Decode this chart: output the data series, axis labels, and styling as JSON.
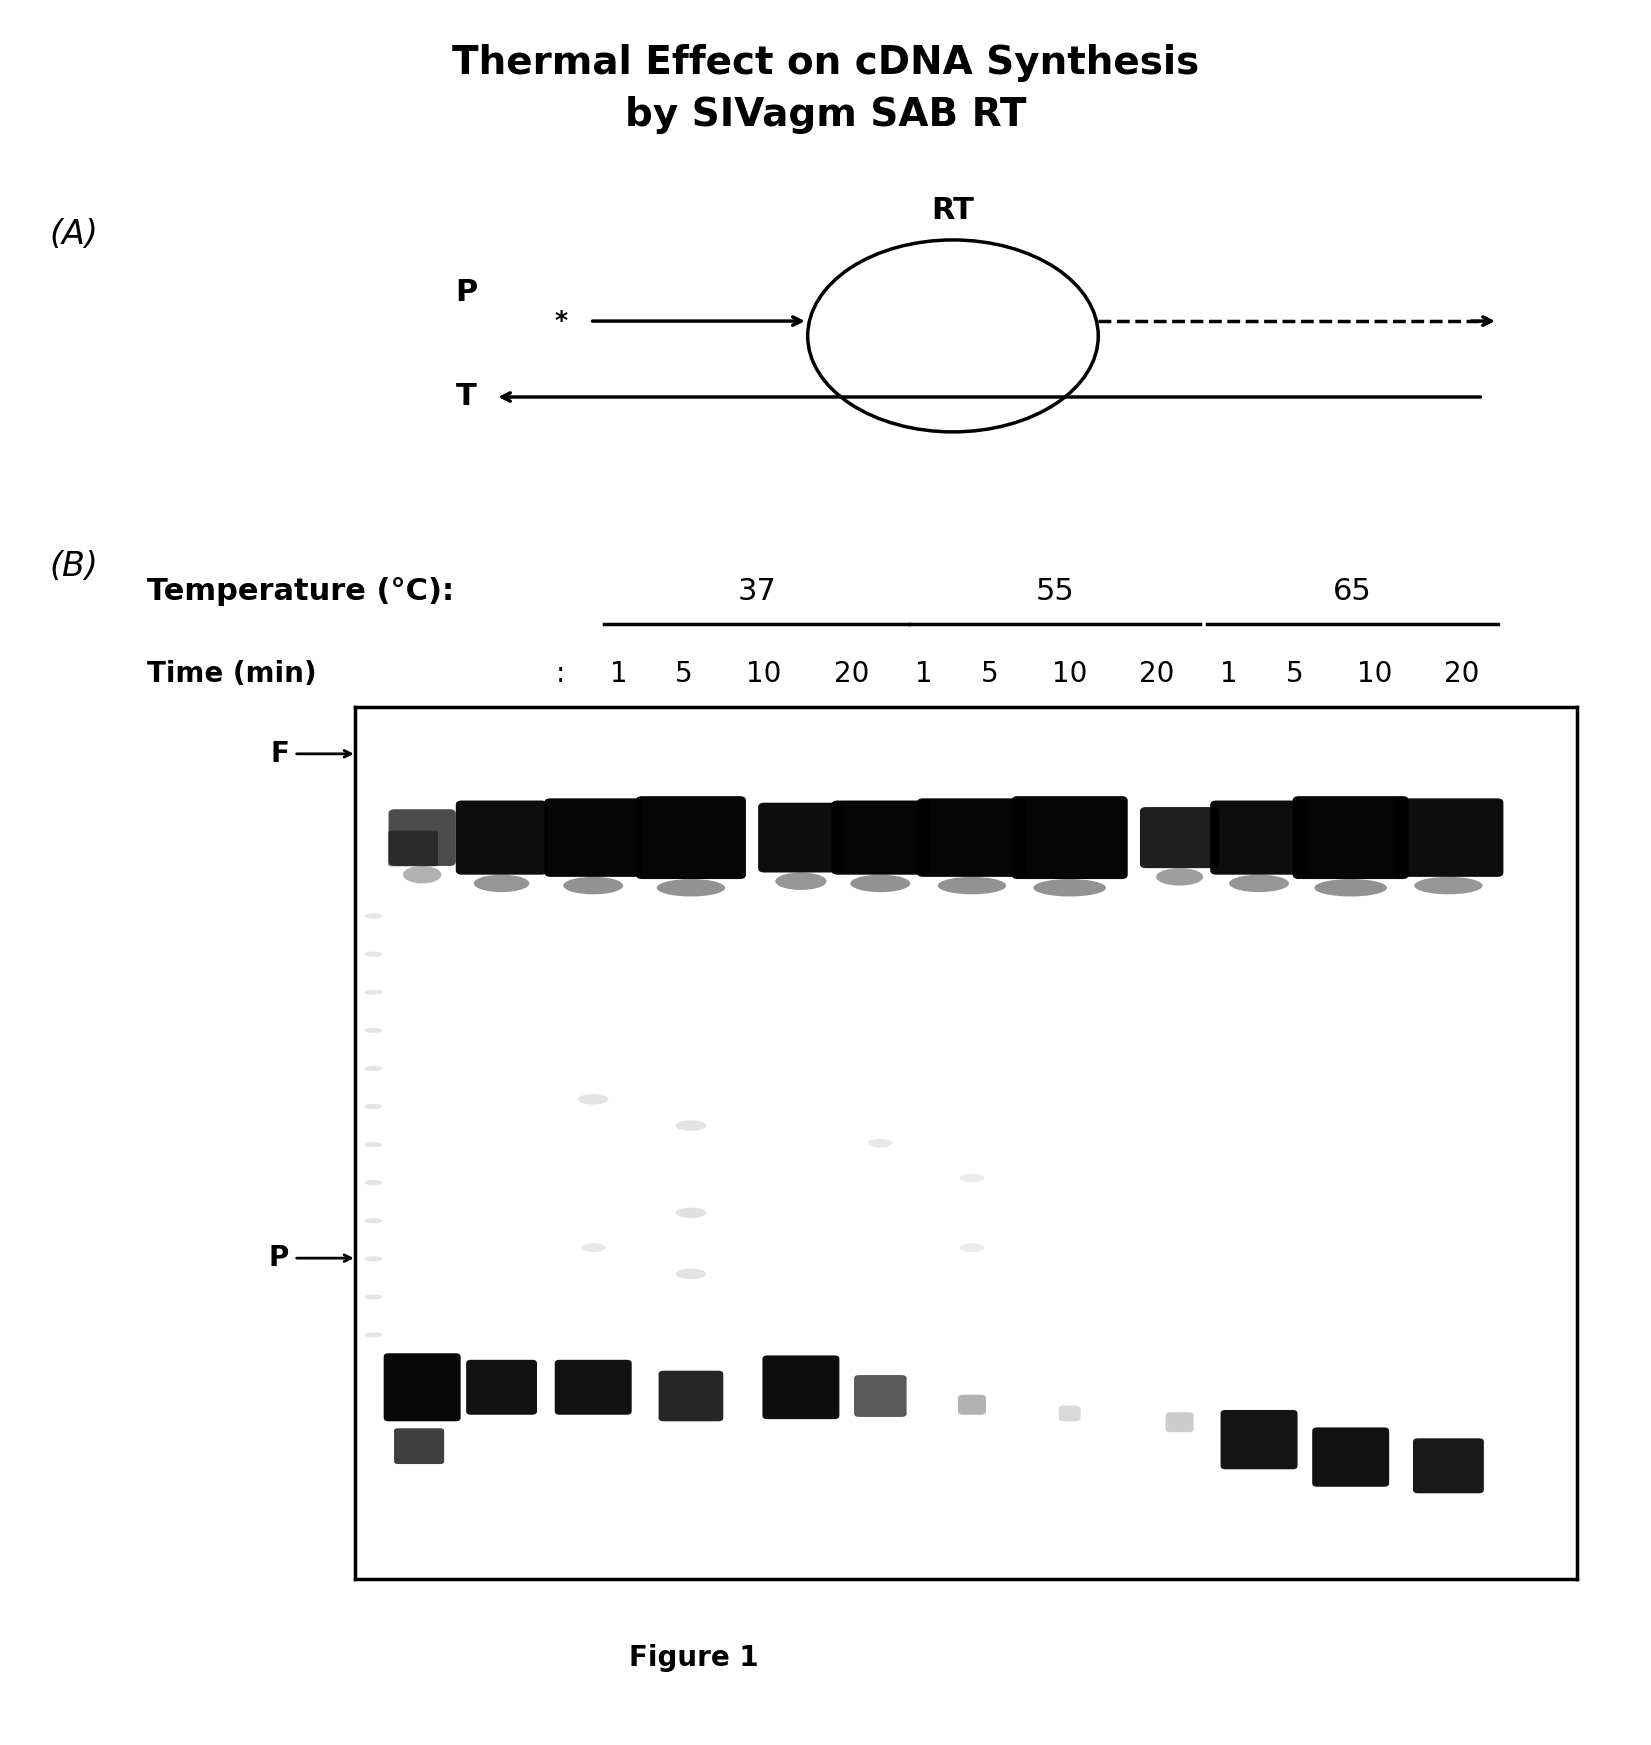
{
  "title_line1": "Thermal Effect on cDNA Synthesis",
  "title_line2": "by SIVagm SAB RT",
  "title_fontsize": 28,
  "panel_A_label": "(A)",
  "panel_B_label": "(B)",
  "RT_label": "RT",
  "P_label_diagram": "P",
  "T_label_diagram": "T",
  "F_label": "F",
  "P_label_gel": "P",
  "temp_label": "Temperature (°C):",
  "time_label": "Time (min)",
  "temperatures": [
    "37",
    "55",
    "65"
  ],
  "time_points": [
    "1",
    "5",
    "10",
    "20",
    "1",
    "5",
    "10",
    "20",
    "1",
    "5",
    "10",
    "20"
  ],
  "figure_caption": "Figure 1",
  "background_color": "#ffffff",
  "text_color": "#000000",
  "temp_fontsize": 22,
  "time_fontsize": 20,
  "label_fontsize": 20,
  "panel_label_fontsize": 24,
  "fig_caption_fontsize": 20
}
